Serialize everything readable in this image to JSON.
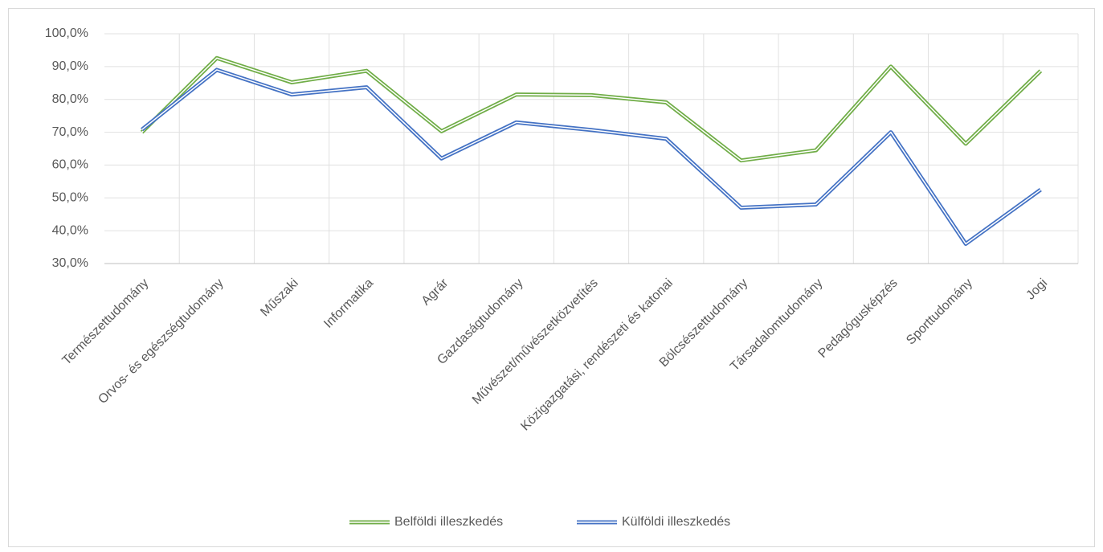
{
  "chart_data": {
    "type": "line",
    "categories": [
      "Természettudomány",
      "Orvos- és egészségtudomány",
      "Műszaki",
      "Informatika",
      "Agrár",
      "Gazdaságtudomány",
      "Művészet/művészetközvetítés",
      "Közigazgatási, rendészeti és katonai",
      "Bölcsészettudomány",
      "Társadalomtudomány",
      "Pedagógusképzés",
      "Sporttudomány",
      "Jogi"
    ],
    "series": [
      {
        "name": "Belföldi illeszkedés",
        "color": "#70ad47",
        "values": [
          70.0,
          92.6,
          85.2,
          88.7,
          70.3,
          81.5,
          81.3,
          79.1,
          61.4,
          64.5,
          90.0,
          66.5,
          88.7
        ]
      },
      {
        "name": "Külföldi illeszkedés",
        "color": "#4472c4",
        "values": [
          70.8,
          89.0,
          81.5,
          83.7,
          62.0,
          73.0,
          70.7,
          68.0,
          47.0,
          48.0,
          70.0,
          36.0,
          52.5
        ]
      }
    ],
    "ylim": [
      30,
      100
    ],
    "yticks": [
      {
        "value": 30,
        "label": "30,0%"
      },
      {
        "value": 40,
        "label": "40,0%"
      },
      {
        "value": 50,
        "label": "50,0%"
      },
      {
        "value": 60,
        "label": "60,0%"
      },
      {
        "value": 70,
        "label": "70,0%"
      },
      {
        "value": 80,
        "label": "80,0%"
      },
      {
        "value": 90,
        "label": "90,0%"
      },
      {
        "value": 100,
        "label": "100,0%"
      }
    ],
    "grid": true,
    "legend": "bottom"
  }
}
